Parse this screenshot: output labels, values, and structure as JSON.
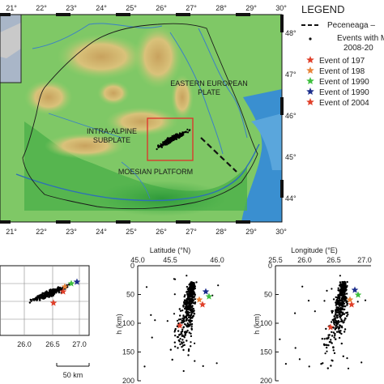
{
  "map": {
    "lon_ticks": [
      "21°",
      "22°",
      "23°",
      "24°",
      "25°",
      "26°",
      "27°",
      "28°",
      "29°",
      "30°"
    ],
    "lat_ticks": [
      "48°",
      "47°",
      "46°",
      "45°",
      "44°"
    ],
    "regions": {
      "eastern_european": [
        "EASTERN EUROPEAN",
        "PLATE"
      ],
      "intra_alpine": [
        "INTRA-ALPINE",
        "SUBPLATE"
      ],
      "moesian": "MOESIAN PLATFORM"
    }
  },
  "legend": {
    "title": "LEGEND",
    "items": [
      {
        "label": "Peceneaga –",
        "symbol": "dashed-line",
        "color": "#111111"
      },
      {
        "label": "Events with M",
        "label2": "2008-20",
        "symbol": "dot",
        "color": "#111111"
      },
      {
        "label": "Event of 197",
        "symbol": "star",
        "color": "#e0402a"
      },
      {
        "label": "Event of 198",
        "symbol": "star",
        "color": "#e8843a"
      },
      {
        "label": "Event of 1990",
        "symbol": "star",
        "color": "#3fbf3f"
      },
      {
        "label": "Event of 1990",
        "symbol": "star",
        "color": "#1c2e8c"
      },
      {
        "label": "Event of 2004",
        "symbol": "star",
        "color": "#e0402a"
      }
    ]
  },
  "panels": {
    "map_view": {
      "x_ticks": [
        "26.0",
        "26.5",
        "27.0"
      ],
      "scale_bar": "50 km"
    },
    "latitude_depth": {
      "x_title": "Latitude (°N)",
      "x_ticks": [
        "45.0",
        "45.5",
        "46.0"
      ],
      "y_title": "h (km)",
      "y_ticks": [
        "0",
        "50",
        "100",
        "150",
        "200"
      ],
      "ylim": [
        0,
        200
      ]
    },
    "longitude_depth": {
      "x_title": "Longitude (°E)",
      "x_ticks": [
        "25.5",
        "26.0",
        "26.5",
        "27.0"
      ],
      "y_title": "h (km)",
      "y_ticks": [
        "0",
        "50",
        "100",
        "150",
        "200"
      ],
      "ylim": [
        0,
        200
      ]
    }
  }
}
